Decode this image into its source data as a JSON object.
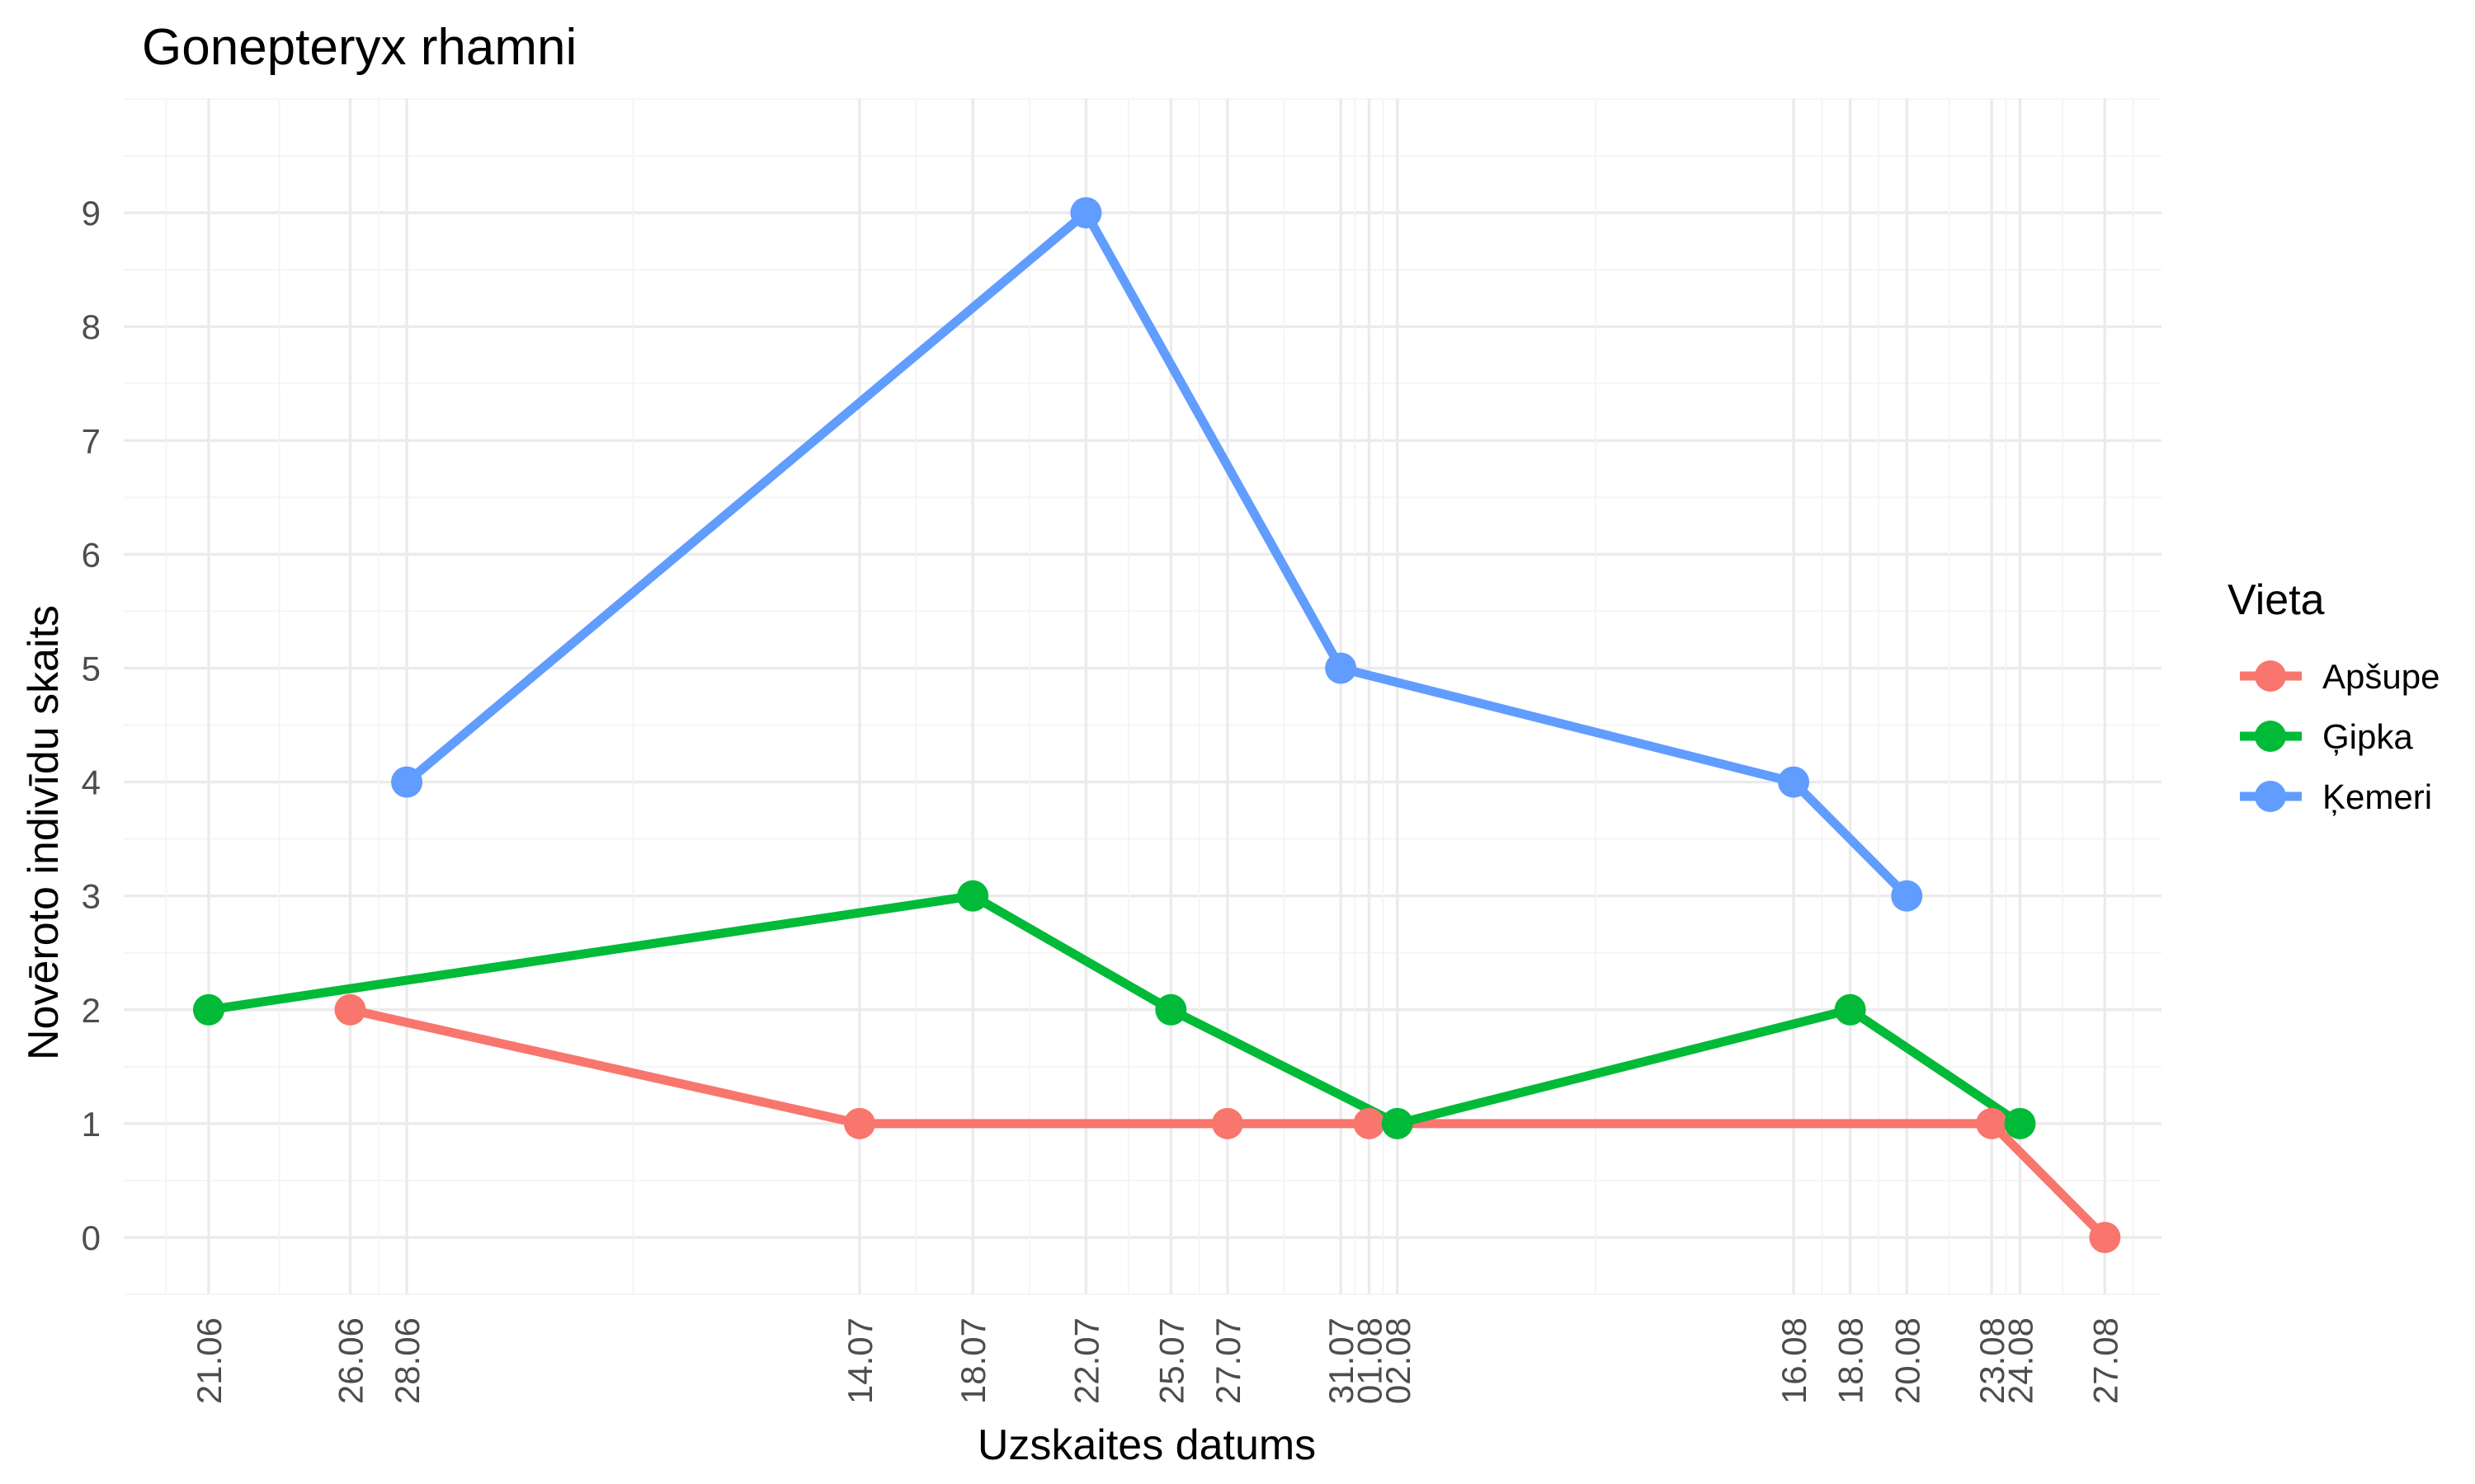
{
  "chart_data": {
    "type": "line",
    "title": "Gonepteryx rhamni",
    "xlabel": "Uzskaites datums",
    "ylabel": "Novēroto indivīdu skaits",
    "x_tick_labels": [
      "21.06",
      "26.06",
      "28.06",
      "14.07",
      "18.07",
      "22.07",
      "25.07",
      "27.07",
      "31.07",
      "01.08",
      "02.08",
      "16.08",
      "18.08",
      "20.08",
      "23.08",
      "24.08",
      "27.08"
    ],
    "y_ticks": [
      0,
      1,
      2,
      3,
      4,
      5,
      6,
      7,
      8,
      9
    ],
    "ylim": [
      -0.5,
      10
    ],
    "xlim": [
      "18.06",
      "29.08"
    ],
    "grid": true,
    "legend": {
      "title": "Vieta",
      "position": "right"
    },
    "series": [
      {
        "name": "Apšupe",
        "color": "#F8766D",
        "points": [
          {
            "x": "26.06",
            "y": 2
          },
          {
            "x": "14.07",
            "y": 1
          },
          {
            "x": "27.07",
            "y": 1
          },
          {
            "x": "01.08",
            "y": 1
          },
          {
            "x": "23.08",
            "y": 1
          },
          {
            "x": "27.08",
            "y": 0
          }
        ]
      },
      {
        "name": "Ģipka",
        "color": "#00BA38",
        "points": [
          {
            "x": "21.06",
            "y": 2
          },
          {
            "x": "18.07",
            "y": 3
          },
          {
            "x": "25.07",
            "y": 2
          },
          {
            "x": "02.08",
            "y": 1
          },
          {
            "x": "18.08",
            "y": 2
          },
          {
            "x": "24.08",
            "y": 1
          }
        ]
      },
      {
        "name": "Ķemeri",
        "color": "#619CFF",
        "points": [
          {
            "x": "28.06",
            "y": 4
          },
          {
            "x": "22.07",
            "y": 9
          },
          {
            "x": "31.07",
            "y": 5
          },
          {
            "x": "16.08",
            "y": 4
          },
          {
            "x": "20.08",
            "y": 3
          }
        ]
      }
    ]
  }
}
